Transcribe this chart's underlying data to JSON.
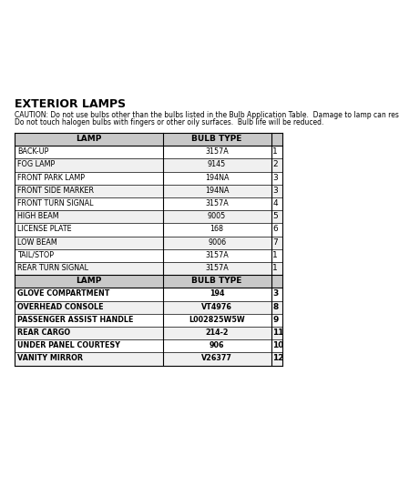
{
  "title": "EXTERIOR LAMPS",
  "caution": "CAUTION: Do not use bulbs other than the bulbs listed in the Bulb Application Table.  Damage to lamp can result.\nDo not touch halogen bulbs with fingers or other oily surfaces.  Bulb life will be reduced.",
  "section1_header": [
    "LAMP",
    "BULB TYPE"
  ],
  "section1_rows": [
    [
      "BACK-UP",
      "3157A",
      "1"
    ],
    [
      "FOG LAMP",
      "9145",
      "2"
    ],
    [
      "FRONT PARK LAMP",
      "194NA",
      "3"
    ],
    [
      "FRONT SIDE MARKER",
      "194NA",
      "3"
    ],
    [
      "FRONT TURN SIGNAL",
      "3157A",
      "4"
    ],
    [
      "HIGH BEAM",
      "9005",
      "5"
    ],
    [
      "LICENSE PLATE",
      "168",
      "6"
    ],
    [
      "LOW BEAM",
      "9006",
      "7"
    ],
    [
      "TAIL/STOP",
      "3157A",
      "1"
    ],
    [
      "REAR TURN SIGNAL",
      "3157A",
      "1"
    ]
  ],
  "section2_header": [
    "LAMP",
    "BULB TYPE"
  ],
  "section2_rows": [
    [
      "GLOVE COMPARTMENT",
      "194",
      "3"
    ],
    [
      "OVERHEAD CONSOLE",
      "VT4976",
      "8"
    ],
    [
      "PASSENGER ASSIST HANDLE",
      "L002825W5W",
      "9"
    ],
    [
      "REAR CARGO",
      "214-2",
      "11"
    ],
    [
      "UNDER PANEL COURTESY",
      "906",
      "10"
    ],
    [
      "VANITY MIRROR",
      "V26377",
      "12"
    ]
  ],
  "bg_color": "#ffffff",
  "table_border_color": "#000000",
  "header_bg": "#d0d0d0",
  "row_bg_normal": "#ffffff",
  "row_bg_bold": "#e8e8e8",
  "text_color": "#000000",
  "font_size_title": 9,
  "font_size_caution": 5.5,
  "font_size_header": 6.5,
  "font_size_row": 5.8,
  "font_size_num": 6.5
}
